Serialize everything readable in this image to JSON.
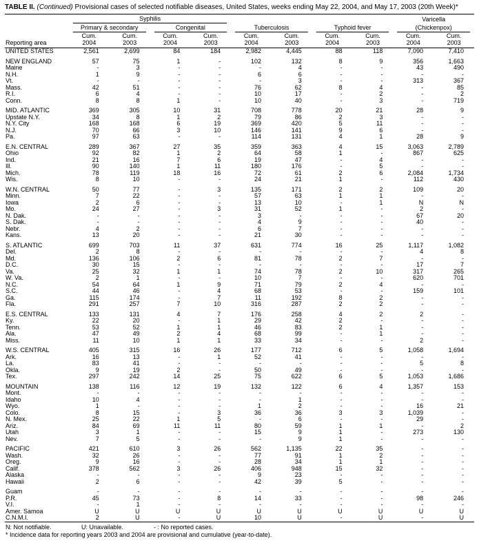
{
  "title": {
    "table": "TABLE II.",
    "continued": "(Continued)",
    "rest": "Provisional cases of selected notifiable diseases, United States, weeks ending May 22, 2004, and May 17, 2003 (20th Week)*"
  },
  "header": {
    "reporting_area": "Reporting area",
    "syphilis": "Syphilis",
    "primary_secondary": "Primary & secondary",
    "congenital": "Congenital",
    "tuberculosis": "Tuberculosis",
    "typhoid_fever": "Typhoid fever",
    "varicella_line1": "Varicella",
    "varicella_line2": "(Chickenpox)",
    "cum": "Cum.",
    "year_2004": "2004",
    "year_2003": "2003"
  },
  "sections": [
    {
      "rows": [
        {
          "area": "UNITED STATES",
          "v": [
            "2,561",
            "2,699",
            "84",
            "184",
            "2,982",
            "4,445",
            "88",
            "118",
            "7,090",
            "7,410"
          ]
        }
      ]
    },
    {
      "rows": [
        {
          "area": "NEW ENGLAND",
          "v": [
            "57",
            "75",
            "1",
            "-",
            "102",
            "132",
            "8",
            "9",
            "356",
            "1,663"
          ]
        },
        {
          "area": "Maine",
          "v": [
            "-",
            "3",
            "-",
            "-",
            "-",
            "4",
            "-",
            "-",
            "43",
            "490"
          ]
        },
        {
          "area": "N.H.",
          "v": [
            "1",
            "9",
            "-",
            "-",
            "6",
            "6",
            "-",
            "-",
            "-",
            "-"
          ]
        },
        {
          "area": "Vt.",
          "v": [
            "-",
            "-",
            "-",
            "-",
            "-",
            "3",
            "-",
            "-",
            "313",
            "367"
          ]
        },
        {
          "area": "Mass.",
          "v": [
            "42",
            "51",
            "-",
            "-",
            "76",
            "62",
            "8",
            "4",
            "-",
            "85"
          ]
        },
        {
          "area": "R.I.",
          "v": [
            "6",
            "4",
            "-",
            "-",
            "10",
            "17",
            "-",
            "2",
            "-",
            "2"
          ]
        },
        {
          "area": "Conn.",
          "v": [
            "8",
            "8",
            "1",
            "-",
            "10",
            "40",
            "-",
            "3",
            "-",
            "719"
          ]
        }
      ]
    },
    {
      "rows": [
        {
          "area": "MID. ATLANTIC",
          "v": [
            "369",
            "305",
            "10",
            "31",
            "708",
            "778",
            "20",
            "21",
            "28",
            "9"
          ]
        },
        {
          "area": "Upstate N.Y.",
          "v": [
            "34",
            "8",
            "1",
            "2",
            "79",
            "86",
            "2",
            "3",
            "-",
            "-"
          ]
        },
        {
          "area": "N.Y. City",
          "v": [
            "168",
            "168",
            "6",
            "19",
            "369",
            "420",
            "5",
            "11",
            "-",
            "-"
          ]
        },
        {
          "area": "N.J.",
          "v": [
            "70",
            "66",
            "3",
            "10",
            "146",
            "141",
            "9",
            "6",
            "-",
            "-"
          ]
        },
        {
          "area": "Pa.",
          "v": [
            "97",
            "63",
            "-",
            "-",
            "114",
            "131",
            "4",
            "1",
            "28",
            "9"
          ]
        }
      ]
    },
    {
      "rows": [
        {
          "area": "E.N. CENTRAL",
          "v": [
            "289",
            "367",
            "27",
            "35",
            "359",
            "363",
            "4",
            "15",
            "3,063",
            "2,789"
          ]
        },
        {
          "area": "Ohio",
          "v": [
            "92",
            "82",
            "1",
            "2",
            "64",
            "58",
            "1",
            "-",
            "867",
            "625"
          ]
        },
        {
          "area": "Ind.",
          "v": [
            "21",
            "16",
            "7",
            "6",
            "19",
            "47",
            "-",
            "4",
            "-",
            "-"
          ]
        },
        {
          "area": "Ill.",
          "v": [
            "90",
            "140",
            "1",
            "11",
            "180",
            "176",
            "-",
            "5",
            "-",
            "-"
          ]
        },
        {
          "area": "Mich.",
          "v": [
            "78",
            "119",
            "18",
            "16",
            "72",
            "61",
            "2",
            "6",
            "2,084",
            "1,734"
          ]
        },
        {
          "area": "Wis.",
          "v": [
            "8",
            "10",
            "-",
            "-",
            "24",
            "21",
            "1",
            "-",
            "112",
            "430"
          ]
        }
      ]
    },
    {
      "rows": [
        {
          "area": "W.N. CENTRAL",
          "v": [
            "50",
            "77",
            "-",
            "3",
            "135",
            "171",
            "2",
            "2",
            "109",
            "20"
          ]
        },
        {
          "area": "Minn.",
          "v": [
            "7",
            "22",
            "-",
            "-",
            "57",
            "63",
            "1",
            "1",
            "-",
            "-"
          ]
        },
        {
          "area": "Iowa",
          "v": [
            "2",
            "6",
            "-",
            "-",
            "13",
            "10",
            "-",
            "1",
            "N",
            "N"
          ]
        },
        {
          "area": "Mo.",
          "v": [
            "24",
            "27",
            "-",
            "3",
            "31",
            "52",
            "1",
            "-",
            "2",
            "-"
          ]
        },
        {
          "area": "N. Dak.",
          "v": [
            "-",
            "-",
            "-",
            "-",
            "3",
            "-",
            "-",
            "-",
            "67",
            "20"
          ]
        },
        {
          "area": "S. Dak.",
          "v": [
            "-",
            "-",
            "-",
            "-",
            "4",
            "9",
            "-",
            "-",
            "40",
            "-"
          ]
        },
        {
          "area": "Nebr.",
          "v": [
            "4",
            "2",
            "-",
            "-",
            "6",
            "7",
            "-",
            "-",
            "-",
            "-"
          ]
        },
        {
          "area": "Kans.",
          "v": [
            "13",
            "20",
            "-",
            "-",
            "21",
            "30",
            "-",
            "-",
            "-",
            "-"
          ]
        }
      ]
    },
    {
      "rows": [
        {
          "area": "S. ATLANTIC",
          "v": [
            "699",
            "703",
            "11",
            "37",
            "631",
            "774",
            "16",
            "25",
            "1,117",
            "1,082"
          ]
        },
        {
          "area": "Del.",
          "v": [
            "2",
            "8",
            "-",
            "-",
            "-",
            "-",
            "-",
            "-",
            "4",
            "8"
          ]
        },
        {
          "area": "Md.",
          "v": [
            "136",
            "106",
            "2",
            "6",
            "81",
            "78",
            "2",
            "7",
            "-",
            "-"
          ]
        },
        {
          "area": "D.C.",
          "v": [
            "30",
            "15",
            "-",
            "-",
            "-",
            "-",
            "-",
            "-",
            "17",
            "7"
          ]
        },
        {
          "area": "Va.",
          "v": [
            "25",
            "32",
            "1",
            "1",
            "74",
            "78",
            "2",
            "10",
            "317",
            "265"
          ]
        },
        {
          "area": "W. Va.",
          "v": [
            "2",
            "1",
            "-",
            "-",
            "10",
            "7",
            "-",
            "-",
            "620",
            "701"
          ]
        },
        {
          "area": "N.C.",
          "v": [
            "54",
            "64",
            "1",
            "9",
            "71",
            "79",
            "2",
            "4",
            "-",
            "-"
          ]
        },
        {
          "area": "S.C.",
          "v": [
            "44",
            "46",
            "-",
            "4",
            "68",
            "53",
            "-",
            "-",
            "159",
            "101"
          ]
        },
        {
          "area": "Ga.",
          "v": [
            "115",
            "174",
            "-",
            "7",
            "11",
            "192",
            "8",
            "2",
            "-",
            "-"
          ]
        },
        {
          "area": "Fla.",
          "v": [
            "291",
            "257",
            "7",
            "10",
            "316",
            "287",
            "2",
            "2",
            "-",
            "-"
          ]
        }
      ]
    },
    {
      "rows": [
        {
          "area": "E.S. CENTRAL",
          "v": [
            "133",
            "131",
            "4",
            "7",
            "176",
            "258",
            "4",
            "2",
            "2",
            "-"
          ]
        },
        {
          "area": "Ky.",
          "v": [
            "22",
            "20",
            "-",
            "1",
            "29",
            "42",
            "2",
            "-",
            "-",
            "-"
          ]
        },
        {
          "area": "Tenn.",
          "v": [
            "53",
            "52",
            "1",
            "1",
            "46",
            "83",
            "2",
            "1",
            "-",
            "-"
          ]
        },
        {
          "area": "Ala.",
          "v": [
            "47",
            "49",
            "2",
            "4",
            "68",
            "99",
            "-",
            "1",
            "-",
            "-"
          ]
        },
        {
          "area": "Miss.",
          "v": [
            "11",
            "10",
            "1",
            "1",
            "33",
            "34",
            "-",
            "-",
            "2",
            "-"
          ]
        }
      ]
    },
    {
      "rows": [
        {
          "area": "W.S. CENTRAL",
          "v": [
            "405",
            "315",
            "16",
            "26",
            "177",
            "712",
            "6",
            "5",
            "1,058",
            "1,694"
          ]
        },
        {
          "area": "Ark.",
          "v": [
            "16",
            "13",
            "-",
            "1",
            "52",
            "41",
            "-",
            "-",
            "-",
            "-"
          ]
        },
        {
          "area": "La.",
          "v": [
            "83",
            "41",
            "-",
            "-",
            "-",
            "-",
            "-",
            "-",
            "5",
            "8"
          ]
        },
        {
          "area": "Okla.",
          "v": [
            "9",
            "19",
            "2",
            "-",
            "50",
            "49",
            "-",
            "-",
            "-",
            "-"
          ]
        },
        {
          "area": "Tex.",
          "v": [
            "297",
            "242",
            "14",
            "25",
            "75",
            "622",
            "6",
            "5",
            "1,053",
            "1,686"
          ]
        }
      ]
    },
    {
      "rows": [
        {
          "area": "MOUNTAIN",
          "v": [
            "138",
            "116",
            "12",
            "19",
            "132",
            "122",
            "6",
            "4",
            "1,357",
            "153"
          ]
        },
        {
          "area": "Mont.",
          "v": [
            "-",
            "-",
            "-",
            "-",
            "-",
            "-",
            "-",
            "-",
            "-",
            "-"
          ]
        },
        {
          "area": "Idaho",
          "v": [
            "10",
            "4",
            "-",
            "-",
            "-",
            "1",
            "-",
            "-",
            "-",
            "-"
          ]
        },
        {
          "area": "Wyo.",
          "v": [
            "1",
            "-",
            "-",
            "-",
            "1",
            "2",
            "-",
            "-",
            "16",
            "21"
          ]
        },
        {
          "area": "Colo.",
          "v": [
            "8",
            "15",
            "-",
            "3",
            "36",
            "36",
            "3",
            "3",
            "1,039",
            "-"
          ]
        },
        {
          "area": "N. Mex.",
          "v": [
            "25",
            "22",
            "1",
            "5",
            "-",
            "6",
            "-",
            "-",
            "29",
            "-"
          ]
        },
        {
          "area": "Ariz.",
          "v": [
            "84",
            "69",
            "11",
            "11",
            "80",
            "59",
            "1",
            "1",
            "-",
            "2"
          ]
        },
        {
          "area": "Utah",
          "v": [
            "3",
            "1",
            "-",
            "-",
            "15",
            "9",
            "1",
            "-",
            "273",
            "130"
          ]
        },
        {
          "area": "Nev.",
          "v": [
            "7",
            "5",
            "-",
            "-",
            "-",
            "9",
            "1",
            "-",
            "-",
            "-"
          ]
        }
      ]
    },
    {
      "rows": [
        {
          "area": "PACIFIC",
          "v": [
            "421",
            "610",
            "3",
            "26",
            "562",
            "1,135",
            "22",
            "35",
            "-",
            "-"
          ]
        },
        {
          "area": "Wash.",
          "v": [
            "32",
            "26",
            "-",
            "-",
            "77",
            "91",
            "1",
            "2",
            "-",
            "-"
          ]
        },
        {
          "area": "Oreg.",
          "v": [
            "9",
            "16",
            "-",
            "-",
            "28",
            "34",
            "1",
            "1",
            "-",
            "-"
          ]
        },
        {
          "area": "Calif.",
          "v": [
            "378",
            "562",
            "3",
            "26",
            "406",
            "948",
            "15",
            "32",
            "-",
            "-"
          ]
        },
        {
          "area": "Alaska",
          "v": [
            "-",
            "-",
            "-",
            "-",
            "9",
            "23",
            "-",
            "-",
            "-",
            "-"
          ]
        },
        {
          "area": "Hawaii",
          "v": [
            "2",
            "6",
            "-",
            "-",
            "42",
            "39",
            "5",
            "-",
            "-",
            "-"
          ]
        }
      ]
    },
    {
      "rows": [
        {
          "area": "Guam",
          "v": [
            "-",
            "-",
            "-",
            "-",
            "-",
            "-",
            "-",
            "-",
            "-",
            "-"
          ]
        },
        {
          "area": "P.R.",
          "v": [
            "45",
            "73",
            "-",
            "8",
            "14",
            "33",
            "-",
            "-",
            "98",
            "246"
          ]
        },
        {
          "area": "V.I.",
          "v": [
            "-",
            "1",
            "-",
            "-",
            "-",
            "-",
            "-",
            "-",
            "-",
            "-"
          ]
        },
        {
          "area": "Amer. Samoa",
          "v": [
            "U",
            "U",
            "U",
            "U",
            "U",
            "U",
            "U",
            "U",
            "U",
            "U"
          ]
        },
        {
          "area": "C.N.M.I.",
          "v": [
            "2",
            "U",
            "-",
            "U",
            "10",
            "U",
            "-",
            "U",
            "-",
            "U"
          ]
        }
      ]
    }
  ],
  "footnotes": {
    "n": "N: Not notifiable.",
    "u": "U: Unavailable.",
    "dash": "- : No reported cases.",
    "star": "* Incidence data for reporting years 2003 and 2004 are provisional and cumulative (year-to-date)."
  }
}
